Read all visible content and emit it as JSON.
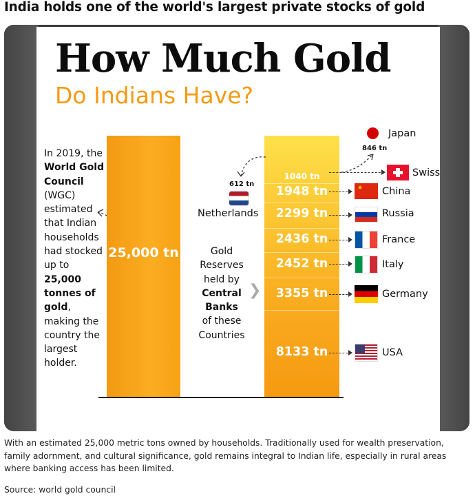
{
  "headline": "India holds one of the world's largest private stocks of gold",
  "infographic": {
    "title": "How Much Gold",
    "subtitle": "Do Indians Have?",
    "india_bar_label": "25,000 tn",
    "left_text": {
      "p1": "In 2019, the ",
      "b1": "World Gold Council",
      "p2": " (WGC) estimated that Indian households had stocked up to ",
      "b2": "25,000 tonnes of gold",
      "p3": ", making the country the largest holder."
    },
    "middle_text": {
      "p1": "Gold Reserves held by",
      "b1": "Central Banks",
      "p2": "of these Countries"
    },
    "netherlands_value": "612 tn",
    "netherlands_name": "Netherlands",
    "japan_value": "846 tn",
    "japan_name": "Japan",
    "segments": [
      {
        "value": "1040 tn",
        "country": "Swiss"
      },
      {
        "value": "1948 tn",
        "country": "China"
      },
      {
        "value": "2299 tn",
        "country": "Russia"
      },
      {
        "value": "2436 tn",
        "country": "France"
      },
      {
        "value": "2452 tn",
        "country": "Italy"
      },
      {
        "value": "3355 tn",
        "country": "Germany"
      },
      {
        "value": "8133 tn",
        "country": "USA"
      }
    ],
    "colors": {
      "accent_orange": "#f29b12",
      "bar_yellow": "#fde14a",
      "bar_orange": "#f69a12"
    }
  },
  "caption": "With an estimated 25,000 metric tons owned by households. Traditionally used for wealth preservation, family adornment, and cultural significance, gold remains integral to Indian life, especially in rural areas where banking access has been limited.",
  "source": "Source: world gold council"
}
